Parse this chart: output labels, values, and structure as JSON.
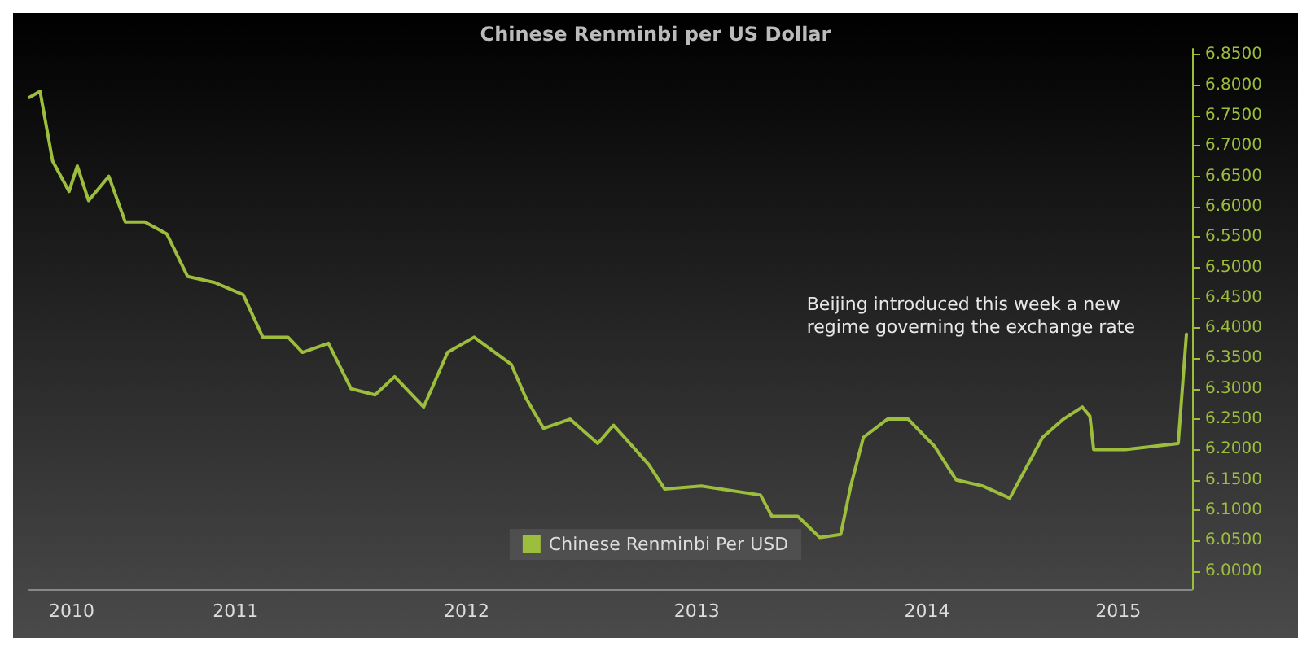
{
  "chart_data": {
    "type": "line",
    "title": "Chinese Renminbi per US Dollar",
    "x": [
      "2010-08-09",
      "2010-08-26",
      "2010-09-15",
      "2010-10-11",
      "2010-10-24",
      "2010-11-11",
      "2010-12-13",
      "2011-01-08",
      "2011-02-08",
      "2011-03-15",
      "2011-04-17",
      "2011-05-30",
      "2011-07-14",
      "2011-08-14",
      "2011-09-23",
      "2011-10-16",
      "2011-11-26",
      "2012-01-01",
      "2012-02-08",
      "2012-03-10",
      "2012-04-25",
      "2012-06-02",
      "2012-07-14",
      "2012-09-11",
      "2012-10-04",
      "2012-11-01",
      "2012-12-13",
      "2013-01-26",
      "2013-02-20",
      "2013-04-17",
      "2013-05-12",
      "2013-07-09",
      "2013-10-11",
      "2013-10-29",
      "2013-12-09",
      "2014-01-13",
      "2014-02-15",
      "2014-03-03",
      "2014-03-23",
      "2014-04-30",
      "2014-06-02",
      "2014-07-14",
      "2014-08-17",
      "2014-09-28",
      "2014-11-10",
      "2015-01-01",
      "2015-02-03",
      "2015-03-05",
      "2015-03-17",
      "2015-03-23",
      "2015-05-12",
      "2015-08-04",
      "2015-08-17"
    ],
    "series": [
      {
        "name": "Chinese Renminbi Per USD",
        "color": "#9dbd3c",
        "values": [
          6.78,
          6.79,
          6.675,
          6.625,
          6.667,
          6.61,
          6.65,
          6.575,
          6.575,
          6.555,
          6.485,
          6.475,
          6.455,
          6.385,
          6.385,
          6.36,
          6.375,
          6.3,
          6.29,
          6.32,
          6.27,
          6.36,
          6.385,
          6.34,
          6.285,
          6.235,
          6.25,
          6.21,
          6.24,
          6.175,
          6.135,
          6.14,
          6.125,
          6.09,
          6.09,
          6.055,
          6.06,
          6.14,
          6.22,
          6.25,
          6.25,
          6.205,
          6.15,
          6.14,
          6.12,
          6.22,
          6.25,
          6.27,
          6.255,
          6.2,
          6.2,
          6.21,
          6.39
        ]
      }
    ],
    "xlim": [
      "2010-08-09",
      "2015-08-26"
    ],
    "xticks": [
      {
        "value": "2010-10-15",
        "label": "2010"
      },
      {
        "value": "2011-07-02",
        "label": "2011"
      },
      {
        "value": "2012-07-02",
        "label": "2012"
      },
      {
        "value": "2013-07-02",
        "label": "2013"
      },
      {
        "value": "2014-07-02",
        "label": "2014"
      },
      {
        "value": "2015-05-01",
        "label": "2015"
      }
    ],
    "ylim": [
      5.97,
      6.86
    ],
    "yticks": [
      {
        "value": 6.0,
        "label": "6.0000"
      },
      {
        "value": 6.05,
        "label": "6.0500"
      },
      {
        "value": 6.1,
        "label": "6.1000"
      },
      {
        "value": 6.15,
        "label": "6.1500"
      },
      {
        "value": 6.2,
        "label": "6.2000"
      },
      {
        "value": 6.25,
        "label": "6.2500"
      },
      {
        "value": 6.3,
        "label": "6.3000"
      },
      {
        "value": 6.35,
        "label": "6.3500"
      },
      {
        "value": 6.4,
        "label": "6.4000"
      },
      {
        "value": 6.45,
        "label": "6.4500"
      },
      {
        "value": 6.5,
        "label": "6.5000"
      },
      {
        "value": 6.55,
        "label": "6.5500"
      },
      {
        "value": 6.6,
        "label": "6.6000"
      },
      {
        "value": 6.65,
        "label": "6.6500"
      },
      {
        "value": 6.7,
        "label": "6.7000"
      },
      {
        "value": 6.75,
        "label": "6.7500"
      },
      {
        "value": 6.8,
        "label": "6.8000"
      },
      {
        "value": 6.85,
        "label": "6.8500"
      }
    ],
    "annotations": [
      "Beijing introduced this week a new\nregime governing the exchange rate"
    ],
    "legend": "bottom",
    "grid": false,
    "marker": "none",
    "line_style": "solid"
  }
}
